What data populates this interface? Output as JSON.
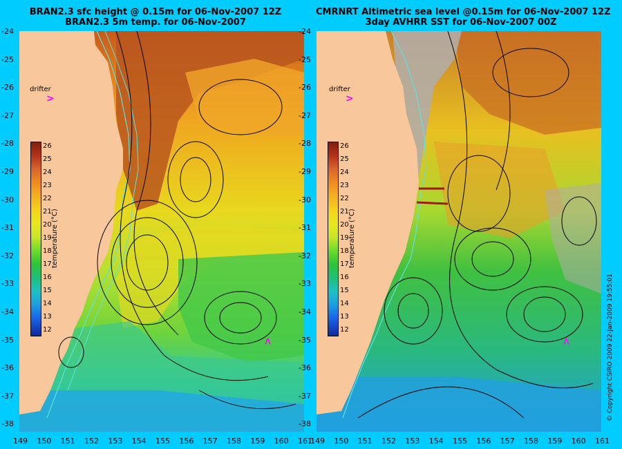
{
  "left_panel": {
    "title_line1": "BRAN2.3 sfc height @ 0.15m for 06-Nov-2007 12Z",
    "title_line2": "BRAN2.3 5m temp. for 06-Nov-2007",
    "drifter_label": "drifter",
    "drifter_marker": ">"
  },
  "right_panel": {
    "title_line1": "CMRNRT Altimetric sea level  @0.15m  for 06-Nov-2007 12Z",
    "title_line2": "3day AVHRR SST for 06-Nov-2007 00Z",
    "drifter_label": "drifter",
    "drifter_marker": ">"
  },
  "colorbar": {
    "label": "temperature (°C)",
    "ticks": [
      "26",
      "25",
      "24",
      "23",
      "22",
      "21",
      "20",
      "19",
      "18",
      "17",
      "16",
      "15",
      "14",
      "13",
      "12"
    ]
  },
  "axes": {
    "y_ticks": [
      "-24",
      "-25",
      "-26",
      "-27",
      "-28",
      "-29",
      "-30",
      "-31",
      "-32",
      "-33",
      "-34",
      "-35",
      "-36",
      "-37",
      "-38"
    ],
    "x_ticks_left": [
      "149",
      "150",
      "151",
      "152",
      "153",
      "154",
      "155",
      "156",
      "157",
      "158",
      "159",
      "160",
      "161"
    ],
    "x_ticks_right": [
      "149",
      "150",
      "151",
      "152",
      "153",
      "154",
      "155",
      "156",
      "157",
      "158",
      "159",
      "160",
      "161"
    ]
  },
  "copyright": "© Copyright CSIRO 2009   22-Jan-2009 19:55:01",
  "colors": {
    "land": "#f8c89c",
    "background": "#00ccff",
    "drifter": "#ff00ff",
    "contour": "#000000",
    "isobath": "#5fe0e0",
    "cloud": "#b3aca6"
  }
}
